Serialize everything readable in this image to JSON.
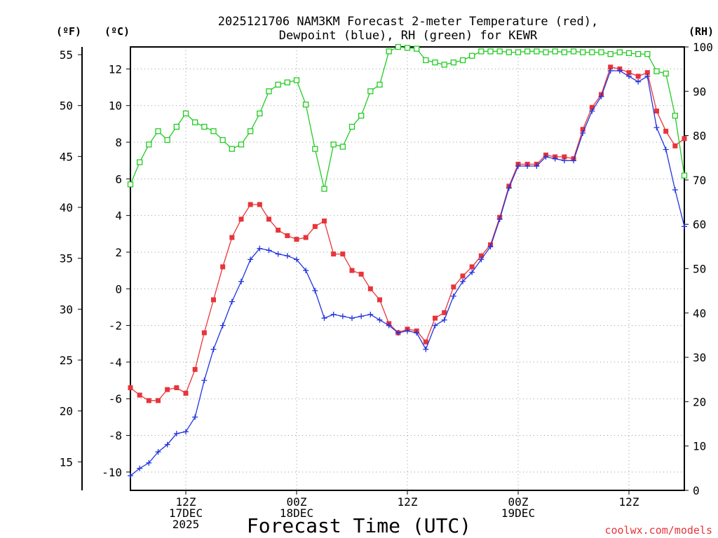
{
  "chart_data": {
    "type": "line",
    "title_line1": "2025121706 NAM3KM Forecast 2-meter Temperature (red),",
    "title_line2": "Dewpoint (blue), RH (green) for KEWR",
    "xlabel": "Forecast Time (UTC)",
    "credit": "coolwx.com/models",
    "unit_labels": {
      "fahrenheit": "(ºF)",
      "celsius": "(ºC)",
      "rh": "(RH)"
    },
    "x_range_hours": [
      0,
      60
    ],
    "y_celsius_range": [
      -11,
      13.2
    ],
    "y_rh_range": [
      0,
      100
    ],
    "grid": true,
    "x_ticks": [
      {
        "hour": 6,
        "label1": "12Z",
        "label2": "17DEC",
        "label3": "2025"
      },
      {
        "hour": 18,
        "label1": "00Z",
        "label2": "18DEC",
        "label3": ""
      },
      {
        "hour": 30,
        "label1": "12Z",
        "label2": "",
        "label3": ""
      },
      {
        "hour": 42,
        "label1": "00Z",
        "label2": "19DEC",
        "label3": ""
      },
      {
        "hour": 54,
        "label1": "12Z",
        "label2": "",
        "label3": ""
      }
    ],
    "celsius_ticks": [
      "-10",
      "-8",
      "-6",
      "-4",
      "-2",
      "0",
      "2",
      "4",
      "6",
      "8",
      "10",
      "12"
    ],
    "fahrenheit_ticks": [
      "15",
      "20",
      "25",
      "30",
      "35",
      "40",
      "45",
      "50",
      "55"
    ],
    "rh_ticks": [
      "0",
      "10",
      "20",
      "30",
      "40",
      "50",
      "60",
      "70",
      "80",
      "90",
      "100"
    ],
    "colors": {
      "temperature": "#e8343a",
      "dewpoint": "#2233dd",
      "rh": "#22cc22",
      "grid": "#999999",
      "credit": "#e8343a"
    },
    "hours": [
      0,
      1,
      2,
      3,
      4,
      5,
      6,
      7,
      8,
      9,
      10,
      11,
      12,
      13,
      14,
      15,
      16,
      17,
      18,
      19,
      20,
      21,
      22,
      23,
      24,
      25,
      26,
      27,
      28,
      29,
      30,
      31,
      32,
      33,
      34,
      35,
      36,
      37,
      38,
      39,
      40,
      41,
      42,
      43,
      44,
      45,
      46,
      47,
      48,
      49,
      50,
      51,
      52,
      53,
      54,
      55,
      56,
      57,
      58,
      59,
      60
    ],
    "series": [
      {
        "name": "Temperature",
        "unit": "C",
        "values": [
          -5.4,
          -5.8,
          -6.1,
          -6.1,
          -5.5,
          -5.4,
          -5.7,
          -4.4,
          -2.4,
          -0.6,
          1.2,
          2.8,
          3.8,
          4.6,
          4.6,
          3.8,
          3.2,
          2.9,
          2.7,
          2.8,
          3.4,
          3.7,
          1.9,
          1.9,
          1.0,
          0.8,
          0.0,
          -0.6,
          -1.9,
          -2.4,
          -2.2,
          -2.3,
          -2.9,
          -1.6,
          -1.3,
          0.1,
          0.7,
          1.2,
          1.8,
          2.4,
          3.9,
          5.6,
          6.8,
          6.8,
          6.8,
          7.3,
          7.2,
          7.2,
          7.1,
          8.7,
          9.9,
          10.6,
          12.1,
          12.0,
          11.8,
          11.6,
          11.8,
          9.7,
          8.6,
          7.8,
          8.2
        ]
      },
      {
        "name": "Dewpoint",
        "unit": "C",
        "values": [
          -10.2,
          -9.8,
          -9.5,
          -8.9,
          -8.5,
          -7.9,
          -7.8,
          -7.0,
          -5.0,
          -3.3,
          -2.0,
          -0.7,
          0.4,
          1.6,
          2.2,
          2.1,
          1.9,
          1.8,
          1.6,
          1.0,
          -0.1,
          -1.6,
          -1.4,
          -1.5,
          -1.6,
          -1.5,
          -1.4,
          -1.7,
          -2.0,
          -2.4,
          -2.3,
          -2.4,
          -3.3,
          -2.0,
          -1.7,
          -0.4,
          0.4,
          0.9,
          1.6,
          2.3,
          3.8,
          5.5,
          6.7,
          6.7,
          6.7,
          7.2,
          7.1,
          7.0,
          7.0,
          8.5,
          9.7,
          10.5,
          11.9,
          11.9,
          11.6,
          11.3,
          11.6,
          8.8,
          7.6,
          5.4,
          3.4
        ]
      },
      {
        "name": "RH",
        "unit": "%",
        "values": [
          69,
          74,
          78,
          81,
          79,
          82,
          85,
          83,
          82,
          81,
          79,
          77,
          78,
          81,
          85,
          90,
          91.5,
          92,
          92.5,
          87,
          77,
          68,
          78,
          77.5,
          82,
          84.5,
          90,
          91.5,
          99,
          100,
          99.8,
          99.6,
          97,
          96.5,
          96,
          96.5,
          97,
          98,
          99,
          99,
          99,
          98.8,
          98.8,
          99,
          99,
          98.8,
          99,
          98.8,
          99,
          98.8,
          98.8,
          98.8,
          98.4,
          98.8,
          98.6,
          98.4,
          98.4,
          94.5,
          94,
          84.5,
          71
        ]
      }
    ]
  }
}
